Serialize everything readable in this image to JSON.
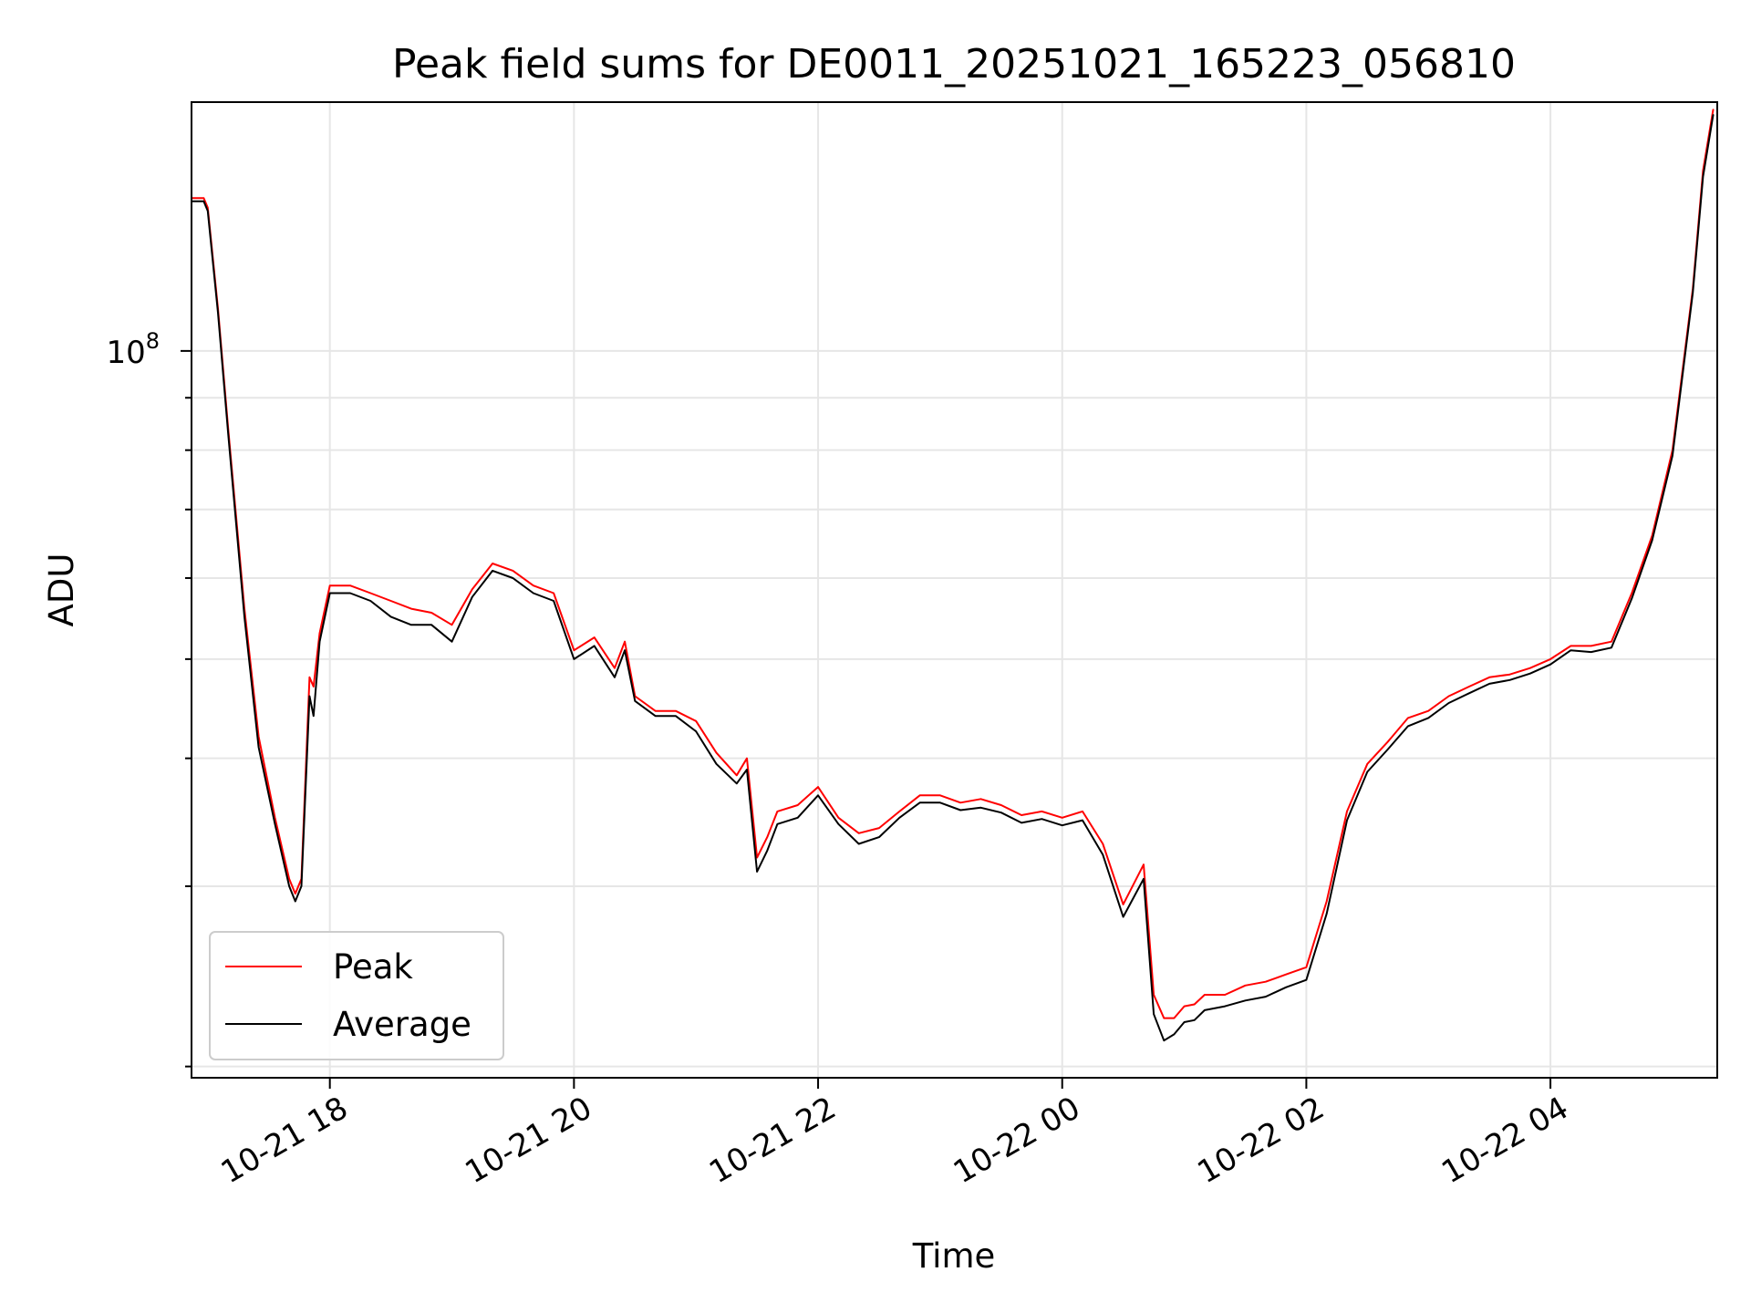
{
  "chart_data": {
    "type": "line",
    "title": "Peak field sums for DE0011_20251021_165223_056810",
    "xlabel": "Time",
    "ylabel": "ADU",
    "y_scale": "log",
    "x_tick_labels": [
      "10-21 18",
      "10-21 20",
      "10-21 22",
      "10-22 00",
      "10-22 02",
      "10-22 04"
    ],
    "x_tick_values": [
      "2025-10-21 18:00",
      "2025-10-21 20:00",
      "2025-10-21 22:00",
      "2025-10-22 00:00",
      "2025-10-22 02:00",
      "2025-10-22 04:00"
    ],
    "y_tick_major": {
      "label_base": "10",
      "label_exp": "8",
      "value": 100000000
    },
    "x_range": [
      "2025-10-21 16:52",
      "2025-10-22 05:22"
    ],
    "ylim": [
      19500000,
      175000000
    ],
    "grid": true,
    "legend_position": "lower-left",
    "series": [
      {
        "name": "Peak",
        "color": "#ff0000",
        "x": [
          "2025-10-21 16:52",
          "2025-10-21 16:58",
          "2025-10-21 17:00",
          "2025-10-21 17:05",
          "2025-10-21 17:10",
          "2025-10-21 17:18",
          "2025-10-21 17:25",
          "2025-10-21 17:33",
          "2025-10-21 17:40",
          "2025-10-21 17:43",
          "2025-10-21 17:46",
          "2025-10-21 17:50",
          "2025-10-21 17:52",
          "2025-10-21 17:55",
          "2025-10-21 18:00",
          "2025-10-21 18:10",
          "2025-10-21 18:20",
          "2025-10-21 18:30",
          "2025-10-21 18:40",
          "2025-10-21 18:50",
          "2025-10-21 19:00",
          "2025-10-21 19:10",
          "2025-10-21 19:20",
          "2025-10-21 19:30",
          "2025-10-21 19:40",
          "2025-10-21 19:50",
          "2025-10-21 20:00",
          "2025-10-21 20:10",
          "2025-10-21 20:20",
          "2025-10-21 20:25",
          "2025-10-21 20:30",
          "2025-10-21 20:40",
          "2025-10-21 20:50",
          "2025-10-21 21:00",
          "2025-10-21 21:10",
          "2025-10-21 21:20",
          "2025-10-21 21:25",
          "2025-10-21 21:30",
          "2025-10-21 21:35",
          "2025-10-21 21:40",
          "2025-10-21 21:50",
          "2025-10-21 22:00",
          "2025-10-21 22:10",
          "2025-10-21 22:20",
          "2025-10-21 22:30",
          "2025-10-21 22:40",
          "2025-10-21 22:50",
          "2025-10-21 23:00",
          "2025-10-21 23:10",
          "2025-10-21 23:20",
          "2025-10-21 23:30",
          "2025-10-21 23:40",
          "2025-10-21 23:50",
          "2025-10-22 00:00",
          "2025-10-22 00:10",
          "2025-10-22 00:20",
          "2025-10-22 00:30",
          "2025-10-22 00:40",
          "2025-10-22 00:45",
          "2025-10-22 00:50",
          "2025-10-22 00:55",
          "2025-10-22 01:00",
          "2025-10-22 01:05",
          "2025-10-22 01:10",
          "2025-10-22 01:20",
          "2025-10-22 01:30",
          "2025-10-22 01:40",
          "2025-10-22 01:50",
          "2025-10-22 02:00",
          "2025-10-22 02:10",
          "2025-10-22 02:20",
          "2025-10-22 02:30",
          "2025-10-22 02:40",
          "2025-10-22 02:50",
          "2025-10-22 03:00",
          "2025-10-22 03:10",
          "2025-10-22 03:20",
          "2025-10-22 03:30",
          "2025-10-22 03:40",
          "2025-10-22 03:50",
          "2025-10-22 04:00",
          "2025-10-22 04:10",
          "2025-10-22 04:20",
          "2025-10-22 04:30",
          "2025-10-22 04:40",
          "2025-10-22 04:50",
          "2025-10-22 05:00",
          "2025-10-22 05:10",
          "2025-10-22 05:15",
          "2025-10-22 05:20"
        ],
        "values": [
          141000000,
          141000000,
          138000000,
          110000000,
          84000000,
          56000000,
          42000000,
          35000000,
          30500000,
          29500000,
          30500000,
          48000000,
          47000000,
          53000000,
          59000000,
          59000000,
          58000000,
          57000000,
          56000000,
          55500000,
          54000000,
          58500000,
          62000000,
          61000000,
          59000000,
          58000000,
          51000000,
          52500000,
          49000000,
          52000000,
          46000000,
          44500000,
          44500000,
          43500000,
          40500000,
          38500000,
          40000000,
          32000000,
          33500000,
          35500000,
          36000000,
          37500000,
          35000000,
          33800000,
          34200000,
          35500000,
          36800000,
          36800000,
          36200000,
          36500000,
          36000000,
          35200000,
          35500000,
          35000000,
          35500000,
          33000000,
          28800000,
          31500000,
          23500000,
          22300000,
          22300000,
          22900000,
          23000000,
          23500000,
          23500000,
          24000000,
          24200000,
          24600000,
          25000000,
          29000000,
          35500000,
          39500000,
          41500000,
          43800000,
          44500000,
          46000000,
          47000000,
          48000000,
          48300000,
          49000000,
          50000000,
          51500000,
          51500000,
          52000000,
          58000000,
          66000000,
          80000000,
          115000000,
          150000000,
          172000000
        ]
      },
      {
        "name": "Average",
        "color": "#000000",
        "x": [
          "2025-10-21 16:52",
          "2025-10-21 16:58",
          "2025-10-21 17:00",
          "2025-10-21 17:05",
          "2025-10-21 17:10",
          "2025-10-21 17:18",
          "2025-10-21 17:25",
          "2025-10-21 17:33",
          "2025-10-21 17:40",
          "2025-10-21 17:43",
          "2025-10-21 17:46",
          "2025-10-21 17:50",
          "2025-10-21 17:52",
          "2025-10-21 17:55",
          "2025-10-21 18:00",
          "2025-10-21 18:10",
          "2025-10-21 18:20",
          "2025-10-21 18:30",
          "2025-10-21 18:40",
          "2025-10-21 18:50",
          "2025-10-21 19:00",
          "2025-10-21 19:10",
          "2025-10-21 19:20",
          "2025-10-21 19:30",
          "2025-10-21 19:40",
          "2025-10-21 19:50",
          "2025-10-21 20:00",
          "2025-10-21 20:10",
          "2025-10-21 20:20",
          "2025-10-21 20:25",
          "2025-10-21 20:30",
          "2025-10-21 20:40",
          "2025-10-21 20:50",
          "2025-10-21 21:00",
          "2025-10-21 21:10",
          "2025-10-21 21:20",
          "2025-10-21 21:25",
          "2025-10-21 21:30",
          "2025-10-21 21:35",
          "2025-10-21 21:40",
          "2025-10-21 21:50",
          "2025-10-21 22:00",
          "2025-10-21 22:10",
          "2025-10-21 22:20",
          "2025-10-21 22:30",
          "2025-10-21 22:40",
          "2025-10-21 22:50",
          "2025-10-21 23:00",
          "2025-10-21 23:10",
          "2025-10-21 23:20",
          "2025-10-21 23:30",
          "2025-10-21 23:40",
          "2025-10-21 23:50",
          "2025-10-22 00:00",
          "2025-10-22 00:10",
          "2025-10-22 00:20",
          "2025-10-22 00:30",
          "2025-10-22 00:40",
          "2025-10-22 00:45",
          "2025-10-22 00:50",
          "2025-10-22 00:55",
          "2025-10-22 01:00",
          "2025-10-22 01:05",
          "2025-10-22 01:10",
          "2025-10-22 01:20",
          "2025-10-22 01:30",
          "2025-10-22 01:40",
          "2025-10-22 01:50",
          "2025-10-22 02:00",
          "2025-10-22 02:10",
          "2025-10-22 02:20",
          "2025-10-22 02:30",
          "2025-10-22 02:40",
          "2025-10-22 02:50",
          "2025-10-22 03:00",
          "2025-10-22 03:10",
          "2025-10-22 03:20",
          "2025-10-22 03:30",
          "2025-10-22 03:40",
          "2025-10-22 03:50",
          "2025-10-22 04:00",
          "2025-10-22 04:10",
          "2025-10-22 04:20",
          "2025-10-22 04:30",
          "2025-10-22 04:40",
          "2025-10-22 04:50",
          "2025-10-22 05:00",
          "2025-10-22 05:10",
          "2025-10-22 05:15",
          "2025-10-22 05:20"
        ],
        "values": [
          140000000,
          140000000,
          137000000,
          109000000,
          83000000,
          55000000,
          41000000,
          34500000,
          30000000,
          29000000,
          30000000,
          46000000,
          44000000,
          52000000,
          58000000,
          58000000,
          57000000,
          55000000,
          54000000,
          54000000,
          52000000,
          57500000,
          61000000,
          60000000,
          58000000,
          57000000,
          50000000,
          51500000,
          48000000,
          51000000,
          45500000,
          44000000,
          44000000,
          42500000,
          39500000,
          37800000,
          39000000,
          31000000,
          32500000,
          34500000,
          35000000,
          36800000,
          34500000,
          33000000,
          33500000,
          35000000,
          36200000,
          36200000,
          35600000,
          35800000,
          35400000,
          34600000,
          34900000,
          34400000,
          34800000,
          32200000,
          28000000,
          30500000,
          22500000,
          21200000,
          21500000,
          22100000,
          22200000,
          22700000,
          22900000,
          23200000,
          23400000,
          23900000,
          24300000,
          28200000,
          34800000,
          38800000,
          40800000,
          43000000,
          43800000,
          45300000,
          46300000,
          47300000,
          47700000,
          48400000,
          49400000,
          51000000,
          50800000,
          51300000,
          57300000,
          65300000,
          79000000,
          114000000,
          148000000,
          170000000
        ]
      }
    ]
  }
}
